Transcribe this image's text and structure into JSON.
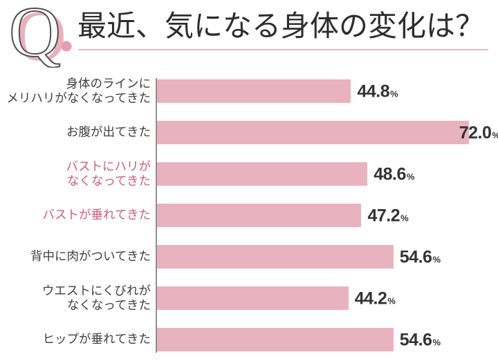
{
  "header": {
    "q_letter": "Q",
    "title": "最近、気になる身体の変化は？"
  },
  "chart_data": {
    "type": "bar",
    "orientation": "horizontal",
    "title": "最近、気になる身体の変化は？",
    "unit": "%",
    "xlim": [
      0,
      80
    ],
    "grid": false,
    "legend": false,
    "categories": [
      [
        "身体のラインに",
        "メリハリがなくなってきた"
      ],
      [
        "お腹が出てきた"
      ],
      [
        "バストにハリが",
        "なくなってきた"
      ],
      [
        "バストが垂れてきた"
      ],
      [
        "背中に肉がついてきた"
      ],
      [
        "ウエストにくびれが",
        "なくなってきた"
      ],
      [
        "ヒップが垂れてきた"
      ]
    ],
    "values": [
      44.8,
      72.0,
      48.6,
      47.2,
      54.6,
      44.2,
      54.6
    ],
    "value_labels": [
      "44.8%",
      "72.0%",
      "48.6%",
      "47.2%",
      "54.6%",
      "44.2%",
      "54.6%"
    ],
    "highlighted_category_indices": [
      2,
      3
    ],
    "colors": {
      "bar": "#e9b2bf",
      "highlight_label": "#d15c75",
      "category_label": "#3f3f3f",
      "value_label": "#333333",
      "axis_line": "#8f8f8f",
      "accent_underline": "#e4b6c2"
    }
  }
}
